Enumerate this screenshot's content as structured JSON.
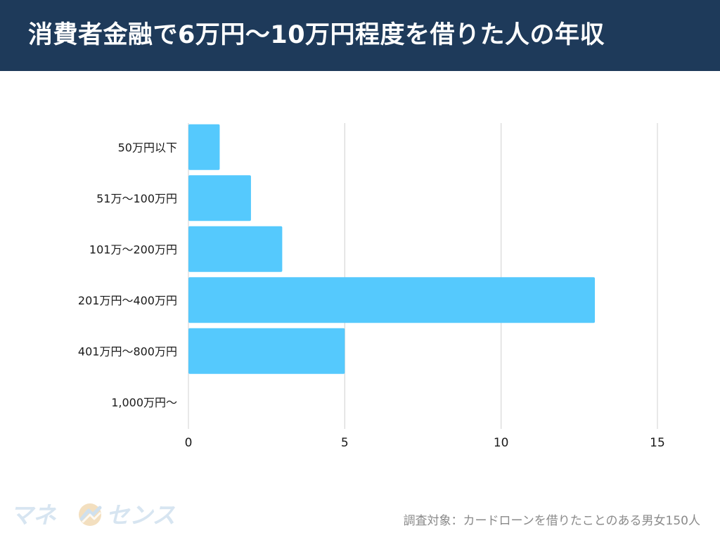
{
  "colors": {
    "header_bg": "#1e3a5a",
    "title_text": "#ffffff",
    "bar": "#55c9fd",
    "grid": "#d8d8d8",
    "axis_text": "#1a1a1a",
    "footnote_text": "#8a8a8a",
    "logo_text": "#d7e5f1",
    "logo_emblem": "#e9c48b"
  },
  "header": {
    "title": "消費者金融で6万円〜10万円程度を借りた人の年収"
  },
  "chart_data": {
    "type": "bar",
    "orientation": "horizontal",
    "title": "消費者金融で6万円〜10万円程度を借りた人の年収",
    "categories": [
      "50万円以下",
      "51万〜100万円",
      "101万〜200万円",
      "201万円〜400万円",
      "401万円〜800万円",
      "1,000万円〜"
    ],
    "values": [
      1,
      2,
      3,
      13,
      5,
      0
    ],
    "xlim": [
      0,
      15
    ],
    "xticks": [
      0,
      5,
      10,
      15
    ],
    "xlabel": "",
    "ylabel": "",
    "grid": true,
    "legend": "none"
  },
  "footer": {
    "logo_text": "マネーセンス",
    "logo_left": "マネ",
    "logo_right": "センス",
    "survey_note": "調査対象：カードローンを借りたことのある男女150人"
  }
}
